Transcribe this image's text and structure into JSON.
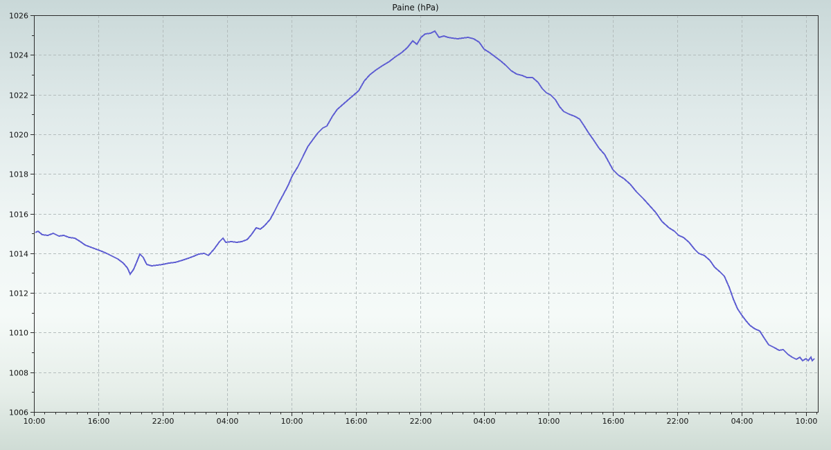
{
  "title": "Paine (hPa)",
  "colors": {
    "background_top": "#c9d8d8",
    "background_middle": "#f0f6f5",
    "background_bottom": "#cfdcd5",
    "grid": "#b3bcbc",
    "axis": "#2a2a2a",
    "text": "#111111",
    "line": "#5e5ed2"
  },
  "chart_data": {
    "type": "line",
    "title": "Paine (hPa)",
    "ylabel": "",
    "xlabel": "",
    "ylim": [
      1006,
      1026
    ],
    "y_tick_values": [
      1006,
      1008,
      1010,
      1012,
      1014,
      1016,
      1018,
      1020,
      1022,
      1024,
      1026
    ],
    "y_minor_step": 1,
    "xlim_hours": [
      0,
      73.1
    ],
    "x_tick_hours": [
      0,
      6,
      12,
      18,
      24,
      30,
      36,
      42,
      48,
      54,
      60,
      66,
      72
    ],
    "x_tick_labels": [
      "10:00",
      "16:00",
      "22:00",
      "04:00",
      "10:00",
      "16:00",
      "22:00",
      "04:00",
      "10:00",
      "16:00",
      "22:00",
      "04:00",
      "10:00"
    ],
    "x_minor_tick_every_hours": 1,
    "grid": true,
    "grid_style": "dashed",
    "line_color": "#5e5ed2",
    "series_name": "Paine pressure (hPa)",
    "points": [
      [
        0.1,
        1015.05
      ],
      [
        0.4,
        1015.1
      ],
      [
        0.8,
        1014.95
      ],
      [
        1.3,
        1014.9
      ],
      [
        1.8,
        1015.0
      ],
      [
        2.3,
        1014.85
      ],
      [
        2.8,
        1014.9
      ],
      [
        3.3,
        1014.8
      ],
      [
        3.8,
        1014.75
      ],
      [
        4.3,
        1014.6
      ],
      [
        4.8,
        1014.4
      ],
      [
        5.3,
        1014.3
      ],
      [
        5.8,
        1014.2
      ],
      [
        6.3,
        1014.1
      ],
      [
        6.8,
        1014.0
      ],
      [
        7.3,
        1013.85
      ],
      [
        7.8,
        1013.7
      ],
      [
        8.3,
        1013.5
      ],
      [
        8.7,
        1013.25
      ],
      [
        9.0,
        1012.95
      ],
      [
        9.3,
        1013.2
      ],
      [
        9.6,
        1013.6
      ],
      [
        9.9,
        1013.95
      ],
      [
        10.2,
        1013.8
      ],
      [
        10.5,
        1013.45
      ],
      [
        11.0,
        1013.35
      ],
      [
        11.5,
        1013.4
      ],
      [
        12.0,
        1013.45
      ],
      [
        12.6,
        1013.5
      ],
      [
        13.2,
        1013.55
      ],
      [
        13.8,
        1013.65
      ],
      [
        14.4,
        1013.75
      ],
      [
        14.9,
        1013.85
      ],
      [
        15.4,
        1013.95
      ],
      [
        15.9,
        1014.0
      ],
      [
        16.3,
        1013.9
      ],
      [
        16.8,
        1014.2
      ],
      [
        17.3,
        1014.6
      ],
      [
        17.6,
        1014.75
      ],
      [
        17.9,
        1014.55
      ],
      [
        18.4,
        1014.6
      ],
      [
        18.9,
        1014.55
      ],
      [
        19.4,
        1014.6
      ],
      [
        19.9,
        1014.7
      ],
      [
        20.3,
        1014.95
      ],
      [
        20.7,
        1015.3
      ],
      [
        21.1,
        1015.2
      ],
      [
        21.5,
        1015.4
      ],
      [
        22.0,
        1015.7
      ],
      [
        22.4,
        1016.1
      ],
      [
        22.8,
        1016.5
      ],
      [
        23.2,
        1016.9
      ],
      [
        23.7,
        1017.4
      ],
      [
        24.1,
        1017.9
      ],
      [
        24.6,
        1018.35
      ],
      [
        25.1,
        1018.9
      ],
      [
        25.6,
        1019.4
      ],
      [
        26.1,
        1019.8
      ],
      [
        26.5,
        1020.05
      ],
      [
        26.9,
        1020.3
      ],
      [
        27.3,
        1020.4
      ],
      [
        27.8,
        1020.9
      ],
      [
        28.3,
        1021.25
      ],
      [
        28.8,
        1021.5
      ],
      [
        29.3,
        1021.75
      ],
      [
        29.8,
        1021.95
      ],
      [
        30.3,
        1022.2
      ],
      [
        30.8,
        1022.7
      ],
      [
        31.3,
        1023.0
      ],
      [
        31.9,
        1023.25
      ],
      [
        32.5,
        1023.45
      ],
      [
        33.1,
        1023.65
      ],
      [
        33.7,
        1023.9
      ],
      [
        34.3,
        1024.1
      ],
      [
        34.8,
        1024.35
      ],
      [
        35.3,
        1024.7
      ],
      [
        35.7,
        1024.55
      ],
      [
        36.1,
        1024.9
      ],
      [
        36.5,
        1025.05
      ],
      [
        37.0,
        1025.1
      ],
      [
        37.4,
        1025.2
      ],
      [
        37.8,
        1024.9
      ],
      [
        38.2,
        1024.95
      ],
      [
        38.6,
        1024.9
      ],
      [
        39.0,
        1024.85
      ],
      [
        39.5,
        1024.8
      ],
      [
        40.0,
        1024.85
      ],
      [
        40.5,
        1024.9
      ],
      [
        41.0,
        1024.8
      ],
      [
        41.5,
        1024.65
      ],
      [
        42.0,
        1024.3
      ],
      [
        42.5,
        1024.1
      ],
      [
        43.0,
        1023.9
      ],
      [
        43.5,
        1023.7
      ],
      [
        44.0,
        1023.5
      ],
      [
        44.5,
        1023.2
      ],
      [
        45.0,
        1023.05
      ],
      [
        45.5,
        1022.95
      ],
      [
        46.0,
        1022.85
      ],
      [
        46.5,
        1022.85
      ],
      [
        47.0,
        1022.6
      ],
      [
        47.4,
        1022.3
      ],
      [
        47.8,
        1022.1
      ],
      [
        48.2,
        1022.0
      ],
      [
        48.6,
        1021.75
      ],
      [
        49.0,
        1021.4
      ],
      [
        49.4,
        1021.15
      ],
      [
        49.9,
        1021.0
      ],
      [
        50.4,
        1020.9
      ],
      [
        50.9,
        1020.75
      ],
      [
        51.3,
        1020.45
      ],
      [
        51.7,
        1020.05
      ],
      [
        52.2,
        1019.7
      ],
      [
        52.7,
        1019.3
      ],
      [
        53.2,
        1019.0
      ],
      [
        53.6,
        1018.6
      ],
      [
        54.0,
        1018.2
      ],
      [
        54.5,
        1017.95
      ],
      [
        55.0,
        1017.75
      ],
      [
        55.6,
        1017.5
      ],
      [
        56.2,
        1017.1
      ],
      [
        56.8,
        1016.75
      ],
      [
        57.4,
        1016.4
      ],
      [
        58.0,
        1016.05
      ],
      [
        58.6,
        1015.6
      ],
      [
        59.2,
        1015.3
      ],
      [
        59.7,
        1015.1
      ],
      [
        60.1,
        1014.9
      ],
      [
        60.6,
        1014.8
      ],
      [
        61.1,
        1014.55
      ],
      [
        61.6,
        1014.2
      ],
      [
        62.0,
        1014.0
      ],
      [
        62.5,
        1013.9
      ],
      [
        63.0,
        1013.65
      ],
      [
        63.5,
        1013.3
      ],
      [
        64.0,
        1013.05
      ],
      [
        64.4,
        1012.85
      ],
      [
        64.8,
        1012.3
      ],
      [
        65.2,
        1011.7
      ],
      [
        65.6,
        1011.2
      ],
      [
        66.0,
        1010.9
      ],
      [
        66.4,
        1010.6
      ],
      [
        66.8,
        1010.35
      ],
      [
        67.2,
        1010.2
      ],
      [
        67.7,
        1010.1
      ],
      [
        68.1,
        1009.7
      ],
      [
        68.5,
        1009.4
      ],
      [
        69.0,
        1009.25
      ],
      [
        69.5,
        1009.1
      ],
      [
        69.9,
        1009.15
      ],
      [
        70.3,
        1008.9
      ],
      [
        70.7,
        1008.75
      ],
      [
        71.1,
        1008.65
      ],
      [
        71.4,
        1008.75
      ],
      [
        71.7,
        1008.6
      ],
      [
        72.0,
        1008.7
      ],
      [
        72.2,
        1008.6
      ],
      [
        72.45,
        1008.75
      ],
      [
        72.6,
        1008.6
      ],
      [
        72.75,
        1008.7
      ]
    ]
  }
}
